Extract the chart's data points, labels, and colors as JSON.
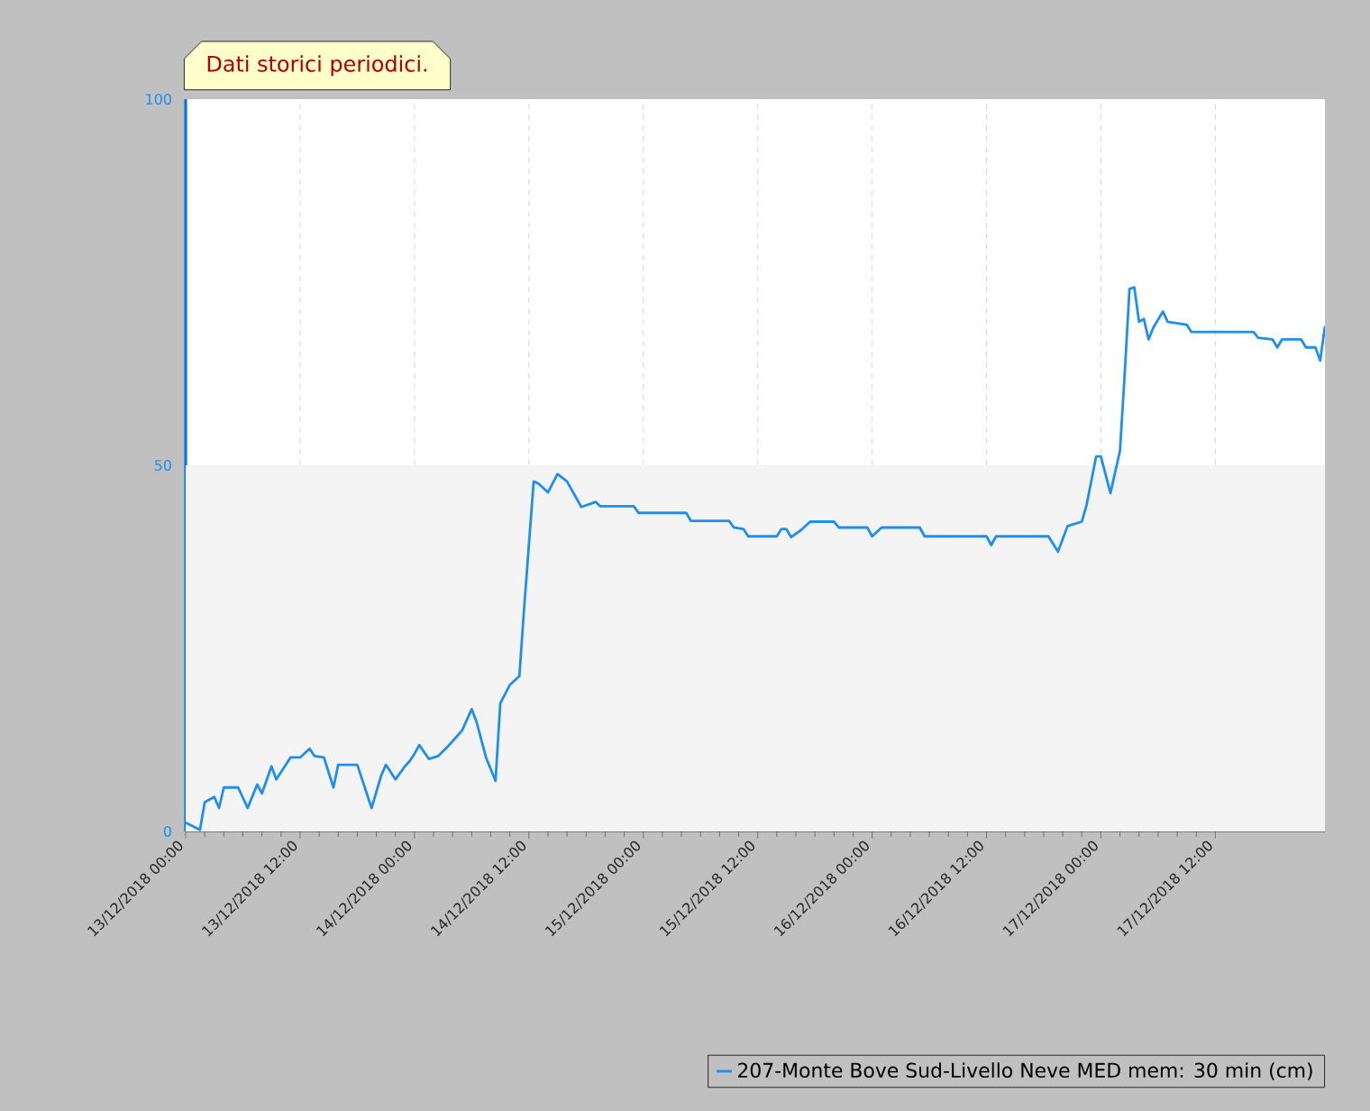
{
  "chart_data": {
    "type": "line",
    "title": "Dati storici periodici.",
    "x": [
      "2018-12-13T00:00",
      "2018-12-13T01:30",
      "2018-12-13T02:00",
      "2018-12-13T03:00",
      "2018-12-13T03:30",
      "2018-12-13T04:00",
      "2018-12-13T05:30",
      "2018-12-13T06:30",
      "2018-12-13T07:30",
      "2018-12-13T08:00",
      "2018-12-13T09:00",
      "2018-12-13T09:30",
      "2018-12-13T11:00",
      "2018-12-13T12:00",
      "2018-12-13T13:00",
      "2018-12-13T13:30",
      "2018-12-13T14:30",
      "2018-12-13T15:30",
      "2018-12-13T16:00",
      "2018-12-13T18:00",
      "2018-12-13T19:30",
      "2018-12-13T20:30",
      "2018-12-13T21:00",
      "2018-12-13T22:00",
      "2018-12-13T23:00",
      "2018-12-13T23:30",
      "2018-12-14T00:00",
      "2018-12-14T00:30",
      "2018-12-14T01:30",
      "2018-12-14T02:30",
      "2018-12-14T03:30",
      "2018-12-14T05:00",
      "2018-12-14T06:00",
      "2018-12-14T06:30",
      "2018-12-14T07:30",
      "2018-12-14T08:30",
      "2018-12-14T09:00",
      "2018-12-14T10:00",
      "2018-12-14T11:00",
      "2018-12-14T11:30",
      "2018-12-14T12:30",
      "2018-12-14T13:00",
      "2018-12-14T14:00",
      "2018-12-14T15:00",
      "2018-12-14T16:00",
      "2018-12-14T17:30",
      "2018-12-14T19:00",
      "2018-12-14T19:30",
      "2018-12-14T23:00",
      "2018-12-14T23:30",
      "2018-12-15T04:30",
      "2018-12-15T05:00",
      "2018-12-15T09:00",
      "2018-12-15T09:30",
      "2018-12-15T10:30",
      "2018-12-15T11:00",
      "2018-12-15T14:00",
      "2018-12-15T14:30",
      "2018-12-15T15:00",
      "2018-12-15T15:30",
      "2018-12-15T16:30",
      "2018-12-15T17:30",
      "2018-12-15T20:00",
      "2018-12-15T20:30",
      "2018-12-15T23:30",
      "2018-12-16T00:00",
      "2018-12-16T01:00",
      "2018-12-16T05:00",
      "2018-12-16T05:30",
      "2018-12-16T12:00",
      "2018-12-16T12:30",
      "2018-12-16T13:00",
      "2018-12-16T18:30",
      "2018-12-16T19:30",
      "2018-12-16T20:30",
      "2018-12-16T22:00",
      "2018-12-16T22:30",
      "2018-12-16T23:00",
      "2018-12-16T23:30",
      "2018-12-17T00:00",
      "2018-12-17T01:00",
      "2018-12-17T02:00",
      "2018-12-17T02:30",
      "2018-12-17T03:00",
      "2018-12-17T03:30",
      "2018-12-17T04:00",
      "2018-12-17T04:30",
      "2018-12-17T05:00",
      "2018-12-17T05:30",
      "2018-12-17T06:30",
      "2018-12-17T07:00",
      "2018-12-17T09:00",
      "2018-12-17T09:30",
      "2018-12-17T16:00",
      "2018-12-17T16:30",
      "2018-12-17T18:00",
      "2018-12-17T18:30",
      "2018-12-17T19:00",
      "2018-12-17T21:00",
      "2018-12-17T21:30",
      "2018-12-17T22:30",
      "2018-12-17T23:00",
      "2018-12-17T23:30"
    ],
    "series": [
      {
        "name": "207-Monte Bove Sud-Livello Neve MED  mem: 30 min (cm)",
        "color": "#1e8ef0",
        "values": [
          1.2,
          0.2,
          4,
          4.7,
          3.2,
          6,
          6,
          3.2,
          6.4,
          5.2,
          8.9,
          7.1,
          10.1,
          10.1,
          11.3,
          10.3,
          10.1,
          6,
          9.1,
          9.1,
          3.2,
          7.6,
          9.1,
          7.1,
          8.9,
          9.6,
          10.6,
          11.8,
          9.9,
          10.3,
          11.6,
          13.8,
          16.7,
          15,
          10.1,
          6.9,
          17.5,
          20,
          21.2,
          30.5,
          47.8,
          47.5,
          46.3,
          48.8,
          47.8,
          44.3,
          45,
          44.4,
          44.4,
          43.5,
          43.5,
          42.4,
          42.4,
          41.5,
          41.3,
          40.3,
          40.3,
          41.3,
          41.3,
          40.2,
          41.1,
          42.3,
          42.3,
          41.5,
          41.5,
          40.3,
          41.5,
          41.5,
          40.3,
          40.3,
          39.1,
          40.3,
          40.3,
          38.2,
          41.7,
          42.3,
          44.6,
          47.9,
          51.2,
          51.2,
          46.2,
          52,
          62.6,
          74.1,
          74.3,
          69.6,
          70,
          67.2,
          68.8,
          71,
          69.6,
          69.2,
          68.2,
          68.2,
          67.4,
          67.2,
          66.1,
          67.2,
          67.2,
          66.1,
          66.1,
          64.3,
          69
        ]
      }
    ],
    "xlim": [
      "2018-12-13T00:00",
      "2018-12-17T23:30"
    ],
    "ylim": [
      0,
      100
    ],
    "xticks": [
      {
        "value": "2018-12-13T00:00",
        "label": "13/12/2018 00:00"
      },
      {
        "value": "2018-12-13T12:00",
        "label": "13/12/2018 12:00"
      },
      {
        "value": "2018-12-14T00:00",
        "label": "14/12/2018 00:00"
      },
      {
        "value": "2018-12-14T12:00",
        "label": "14/12/2018 12:00"
      },
      {
        "value": "2018-12-15T00:00",
        "label": "15/12/2018 00:00"
      },
      {
        "value": "2018-12-15T12:00",
        "label": "15/12/2018 12:00"
      },
      {
        "value": "2018-12-16T00:00",
        "label": "16/12/2018 00:00"
      },
      {
        "value": "2018-12-16T12:00",
        "label": "16/12/2018 12:00"
      },
      {
        "value": "2018-12-17T00:00",
        "label": "17/12/2018 00:00"
      },
      {
        "value": "2018-12-17T12:00",
        "label": "17/12/2018 12:00"
      }
    ],
    "yticks": [
      0,
      50,
      100
    ],
    "grid": "x",
    "legend": "bottom",
    "bands": [
      {
        "axis": "y",
        "from": 0,
        "to": 50,
        "color": "#f4f4f4"
      }
    ],
    "marker": "none",
    "line_style": "solid"
  }
}
